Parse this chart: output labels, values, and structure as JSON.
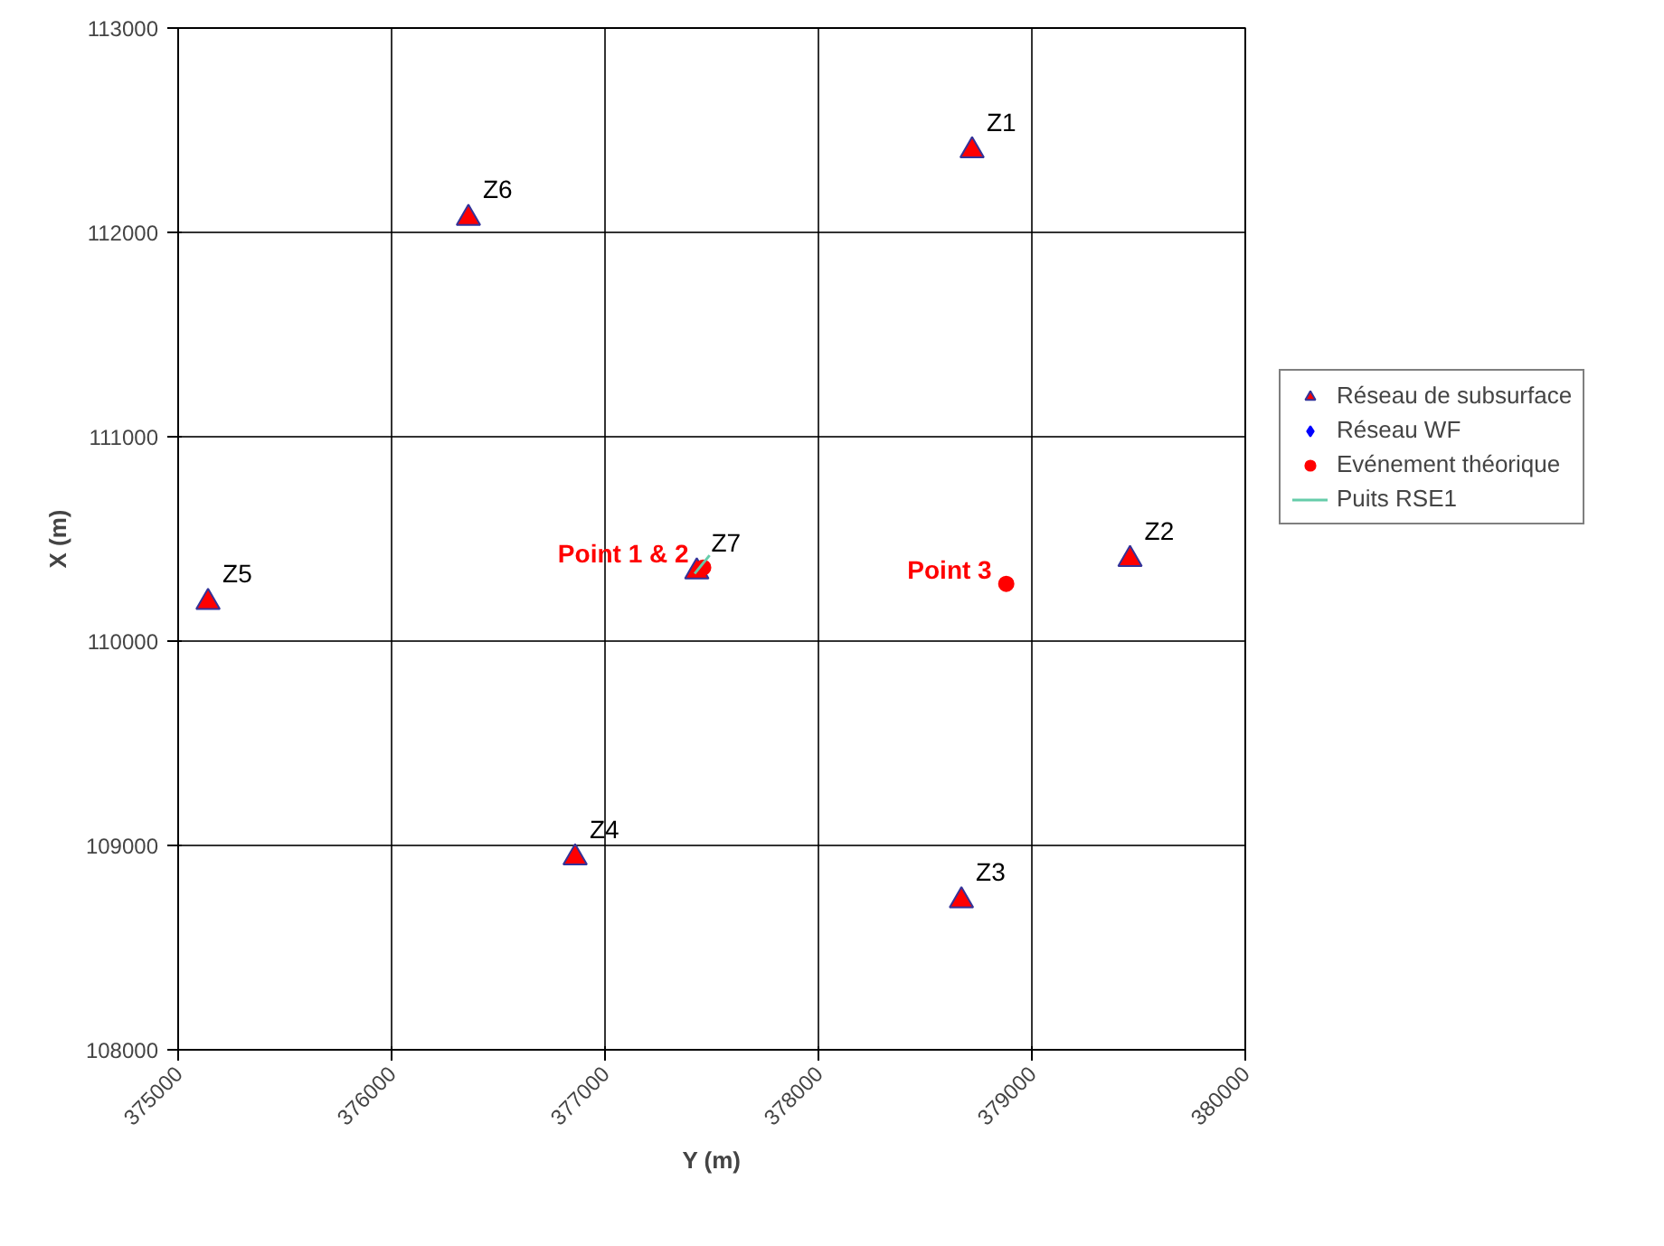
{
  "chart_data": {
    "type": "scatter",
    "xlabel": "Y (m)",
    "ylabel": "X (m)",
    "xlim": [
      375000,
      380000
    ],
    "ylim": [
      108000,
      113000
    ],
    "xticks": [
      375000,
      376000,
      377000,
      378000,
      379000,
      380000
    ],
    "yticks": [
      108000,
      109000,
      110000,
      111000,
      112000,
      113000
    ],
    "grid": true,
    "legend": "right",
    "series": [
      {
        "name": "Réseau de subsurface",
        "marker": "triangle",
        "color": "#ff0000",
        "x": [
          378720,
          379460,
          378670,
          376860,
          375140,
          376360,
          377430
        ],
        "values": [
          112400,
          110400,
          108730,
          108940,
          110190,
          112070,
          110340
        ]
      },
      {
        "name": "Réseau WF",
        "marker": "diamond",
        "color": "#0000ff"
      },
      {
        "name": "Evénement théorique",
        "marker": "circle",
        "color": "#ff0000",
        "x": [
          377460,
          378880
        ],
        "values": [
          110360,
          110280
        ]
      },
      {
        "name": "Puits RSE1",
        "type": "line",
        "marker": "none",
        "color": "#66ccaa",
        "x": [
          377420,
          377490
        ],
        "values": [
          110330,
          110420
        ]
      }
    ],
    "annotations": [
      {
        "text": "Z1",
        "x": 378720,
        "y": 112400
      },
      {
        "text": "Z2",
        "x": 379460,
        "y": 110400
      },
      {
        "text": "Z3",
        "x": 378670,
        "y": 108730
      },
      {
        "text": "Z4",
        "x": 376860,
        "y": 108940
      },
      {
        "text": "Z5",
        "x": 375140,
        "y": 110190
      },
      {
        "text": "Z6",
        "x": 376360,
        "y": 112070
      },
      {
        "text": "Z7",
        "x": 377430,
        "y": 110340
      },
      {
        "text": "Point 1 & 2",
        "x": 377460,
        "y": 110360
      },
      {
        "text": "Point 3",
        "x": 378880,
        "y": 110280
      }
    ]
  }
}
